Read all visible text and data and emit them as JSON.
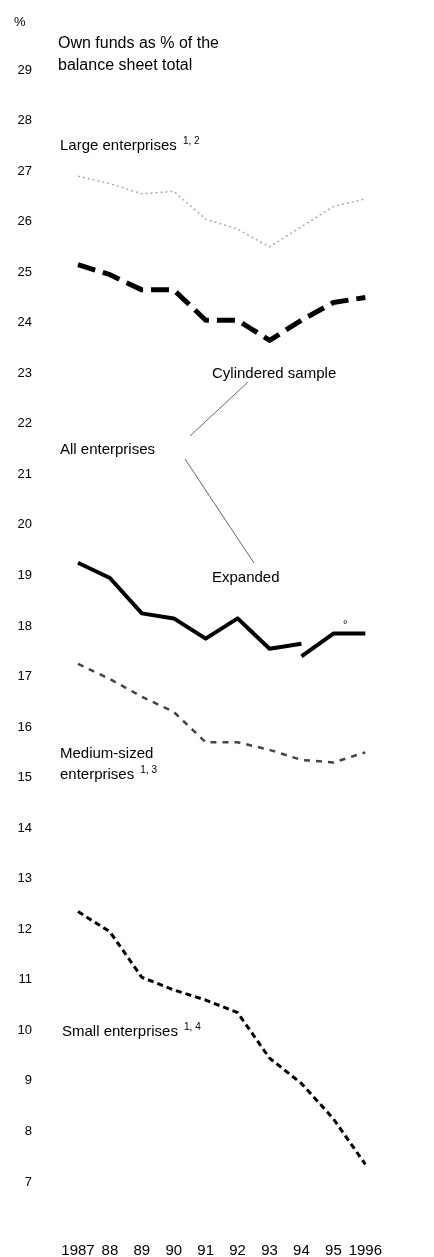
{
  "chart_data": {
    "type": "line",
    "title": "Own funds as % of the balance sheet total",
    "ylabel": "%",
    "categories": [
      "1987",
      "88",
      "89",
      "90",
      "91",
      "92",
      "93",
      "94",
      "95",
      "1996"
    ],
    "series": [
      {
        "name": "Large enterprises $^{1, 2}$",
        "color": "#aaaaaa",
        "line_style": "dotted",
        "values": [
          26.9,
          26.75,
          26.55,
          26.6,
          26.05,
          25.85,
          25.5,
          25.9,
          26.3,
          26.45
        ]
      },
      {
        "name": "Cylindered sample",
        "color": "#000000",
        "line_style": "dashed",
        "values": [
          25.15,
          24.95,
          24.65,
          24.65,
          24.05,
          24.05,
          23.65,
          24.05,
          24.4,
          24.5
        ]
      },
      {
        "name": "Expanded",
        "color": "#000000",
        "line_style": "solid",
        "values": [
          19.25,
          18.95,
          18.25,
          18.15,
          17.75,
          18.15,
          17.55,
          17.65,
          null,
          null
        ]
      },
      {
        "color": "#000000",
        "line_style": "solid",
        "values": [
          null,
          null,
          null,
          null,
          null,
          null,
          null,
          17.4,
          17.85,
          17.85
        ]
      },
      {
        "name": "Medium-sized enterprises $^{1, 3}$",
        "color": "#444444",
        "line_style": "dashed",
        "values": [
          17.25,
          16.95,
          16.6,
          16.3,
          15.7,
          15.7,
          15.55,
          15.35,
          15.3,
          15.5
        ]
      },
      {
        "name": "Small enterprises $^{1, 4}$",
        "color": "#000000",
        "line_style": "dashed",
        "values": [
          12.35,
          11.95,
          11.05,
          10.8,
          10.6,
          10.35,
          9.45,
          8.95,
          8.25,
          7.35
        ]
      }
    ],
    "ylim": [
      7,
      29
    ],
    "yticks": [
      7,
      8,
      9,
      10,
      11,
      12,
      13,
      14,
      15,
      16,
      17,
      18,
      19,
      20,
      21,
      22,
      23,
      24,
      25,
      26,
      27,
      28,
      29
    ],
    "grid": false,
    "legend": false,
    "marker": "none",
    "annotations": [
      "All enterprises",
      "°"
    ]
  }
}
